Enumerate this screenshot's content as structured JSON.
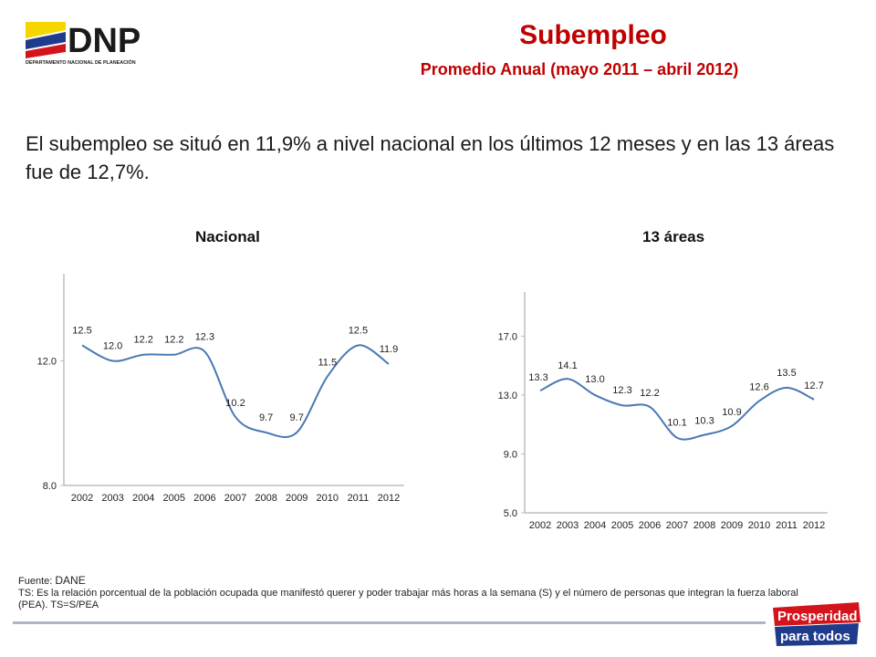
{
  "header": {
    "logo_text": "DNP",
    "logo_subtext": "DEPARTAMENTO NACIONAL DE PLANEACIÓN",
    "title": "Subempleo",
    "subtitle": "Promedio Anual (mayo 2011 – abril 2012)"
  },
  "headline": "El subempleo se situó en 11,9% a nivel nacional en los últimos 12 meses y en las 13 áreas fue de 12,7%.",
  "colors": {
    "title": "#c00000",
    "line": "#4a78b4",
    "axis": "#bdbdbd"
  },
  "chart_data": [
    {
      "type": "line",
      "title": "Nacional",
      "categories": [
        "2002",
        "2003",
        "2004",
        "2005",
        "2006",
        "2007",
        "2008",
        "2009",
        "2010",
        "2011",
        "2012"
      ],
      "values": [
        12.5,
        12.0,
        12.2,
        12.2,
        12.3,
        10.2,
        9.7,
        9.7,
        11.5,
        12.5,
        11.9
      ],
      "value_labels": [
        "12.5",
        "12.0",
        "12.2",
        "12.2",
        "12.3",
        "10.2",
        "9.7",
        "9.7",
        "11.5",
        "12.5",
        "11.9"
      ],
      "y_ticks": [
        "12.0",
        "8.0"
      ],
      "y_tick_values": [
        12.0,
        8.0
      ],
      "ylim": [
        8.0,
        14.8
      ],
      "grid": false,
      "smooth": true
    },
    {
      "type": "line",
      "title": "13 áreas",
      "categories": [
        "2002",
        "2003",
        "2004",
        "2005",
        "2006",
        "2007",
        "2008",
        "2009",
        "2010",
        "2011",
        "2012"
      ],
      "values": [
        13.3,
        14.1,
        13.0,
        12.3,
        12.2,
        10.1,
        10.3,
        10.9,
        12.6,
        13.5,
        12.7
      ],
      "value_labels": [
        "13.3",
        "14.1",
        "13.0",
        "12.3",
        "12.2",
        "10.1",
        "10.3",
        "10.9",
        "12.6",
        "13.5",
        "12.7"
      ],
      "y_ticks": [
        "17.0",
        "13.0",
        "9.0",
        "5.0"
      ],
      "y_tick_values": [
        17.0,
        13.0,
        9.0,
        5.0
      ],
      "ylim": [
        5.0,
        20.0
      ],
      "grid": false,
      "smooth": true
    }
  ],
  "footer": {
    "source_label": "Fuente:",
    "source_value": "DANE",
    "note": "TS: Es la relación porcentual de la población ocupada que manifestó querer y poder trabajar más horas a la semana (S) y el número de personas que integran la fuerza laboral (PEA). TS=S/PEA",
    "brand_line1": "Prosperidad",
    "brand_line2": "para todos"
  }
}
